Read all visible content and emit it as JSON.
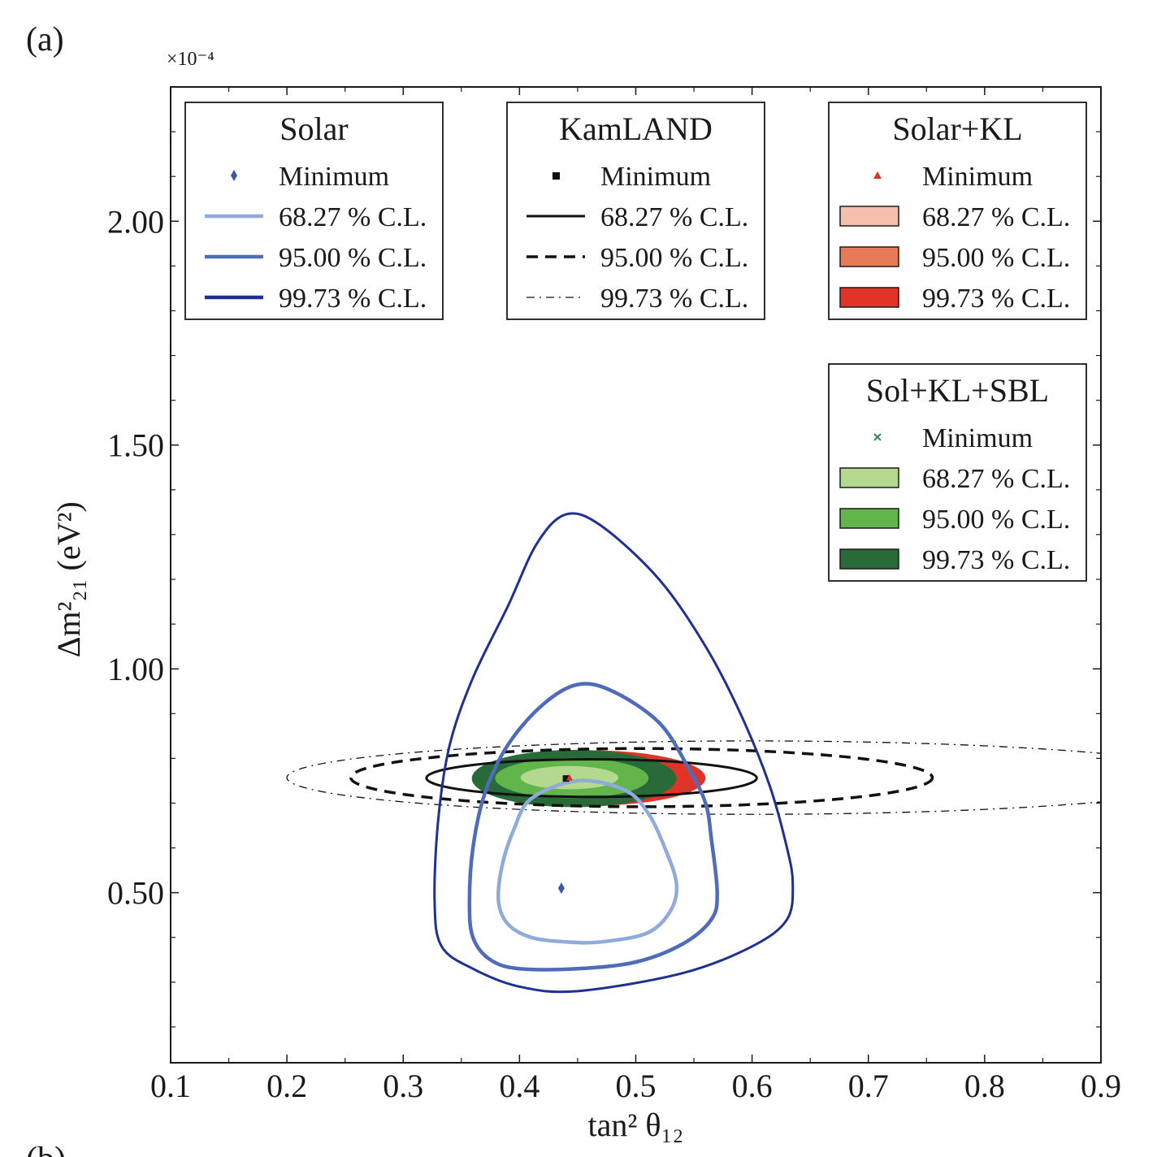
{
  "panel_label": "(a)",
  "next_panel_label": "(b)",
  "chart_data": {
    "type": "contour",
    "xlabel": "tan² θ₁₂",
    "ylabel": "Δm²₂₁ (eV²)",
    "y_multiplier": "×10⁻⁴",
    "xlim": [
      0.1,
      0.9
    ],
    "ylim": [
      0.12,
      2.3
    ],
    "x_ticks": [
      0.1,
      0.2,
      0.3,
      0.4,
      0.5,
      0.6,
      0.7,
      0.8,
      0.9
    ],
    "x_tick_labels": [
      "0.1",
      "0.2",
      "0.3",
      "0.4",
      "0.5",
      "0.6",
      "0.7",
      "0.8",
      "0.9"
    ],
    "y_ticks": [
      0.5,
      1.0,
      1.5,
      2.0
    ],
    "y_tick_labels": [
      "0.50",
      "1.00",
      "1.50",
      "2.00"
    ],
    "colors": {
      "solar_1": "#8fabdc",
      "solar_2": "#4f6cbb",
      "solar_3": "#1e3092",
      "kl": "#111111",
      "skl_1": "#f4c0ae",
      "skl_2": "#e77b57",
      "skl_3": "#e03428",
      "sbl_1": "#b3d98e",
      "sbl_2": "#62b54a",
      "sbl_3": "#286a38"
    },
    "legends": [
      {
        "title": "Solar",
        "entries": [
          {
            "label": "Minimum",
            "marker": "diamond",
            "color": "#3a5aa8"
          },
          {
            "label": "68.27 % C.L.",
            "line": "solid",
            "color": "#8fabdc"
          },
          {
            "label": "95.00 % C.L.",
            "line": "solid",
            "color": "#4f6cbb"
          },
          {
            "label": "99.73 % C.L.",
            "line": "solid",
            "color": "#1e3092"
          }
        ]
      },
      {
        "title": "KamLAND",
        "entries": [
          {
            "label": "Minimum",
            "marker": "square",
            "color": "#111111"
          },
          {
            "label": "68.27 % C.L.",
            "line": "solid",
            "color": "#111111"
          },
          {
            "label": "95.00 % C.L.",
            "line": "dashed",
            "color": "#111111"
          },
          {
            "label": "99.73 % C.L.",
            "line": "dashdot",
            "color": "#111111"
          }
        ]
      },
      {
        "title": "Solar+KL",
        "entries": [
          {
            "label": "Minimum",
            "marker": "triangle",
            "color": "#e03428"
          },
          {
            "label": "68.27 % C.L.",
            "patch": "#f4c0ae"
          },
          {
            "label": "95.00 % C.L.",
            "patch": "#e77b57"
          },
          {
            "label": "99.73 % C.L.",
            "patch": "#e03428"
          }
        ]
      },
      {
        "title": "Sol+KL+SBL",
        "entries": [
          {
            "label": "Minimum",
            "marker": "x",
            "color": "#2e8b57"
          },
          {
            "label": "68.27 % C.L.",
            "patch": "#b3d98e"
          },
          {
            "label": "95.00 % C.L.",
            "patch": "#62b54a"
          },
          {
            "label": "99.73 % C.L.",
            "patch": "#286a38"
          }
        ]
      }
    ],
    "series": [
      {
        "name": "Solar",
        "minimum": [
          0.436,
          0.51
        ],
        "contours": [
          {
            "cl": "68.27 % C.L.",
            "points": [
              [
                0.45,
                0.75
              ],
              [
                0.49,
                0.73
              ],
              [
                0.51,
                0.68
              ],
              [
                0.525,
                0.6
              ],
              [
                0.535,
                0.52
              ],
              [
                0.53,
                0.46
              ],
              [
                0.51,
                0.41
              ],
              [
                0.47,
                0.39
              ],
              [
                0.44,
                0.39
              ],
              [
                0.41,
                0.4
              ],
              [
                0.39,
                0.43
              ],
              [
                0.382,
                0.48
              ],
              [
                0.385,
                0.56
              ],
              [
                0.395,
                0.64
              ],
              [
                0.41,
                0.71
              ]
            ]
          },
          {
            "cl": "95.00 % C.L.",
            "points": [
              [
                0.45,
                0.965
              ],
              [
                0.48,
                0.95
              ],
              [
                0.52,
                0.88
              ],
              [
                0.545,
                0.78
              ],
              [
                0.56,
                0.7
              ],
              [
                0.565,
                0.62
              ],
              [
                0.57,
                0.5
              ],
              [
                0.565,
                0.44
              ],
              [
                0.54,
                0.385
              ],
              [
                0.5,
                0.345
              ],
              [
                0.45,
                0.33
              ],
              [
                0.4,
                0.33
              ],
              [
                0.375,
                0.35
              ],
              [
                0.36,
                0.4
              ],
              [
                0.357,
                0.48
              ],
              [
                0.36,
                0.6
              ],
              [
                0.37,
                0.72
              ],
              [
                0.39,
                0.83
              ],
              [
                0.42,
                0.92
              ]
            ]
          },
          {
            "cl": "99.73 % C.L.",
            "points": [
              [
                0.44,
                1.345
              ],
              [
                0.47,
                1.32
              ],
              [
                0.52,
                1.2
              ],
              [
                0.56,
                1.05
              ],
              [
                0.59,
                0.9
              ],
              [
                0.615,
                0.74
              ],
              [
                0.63,
                0.6
              ],
              [
                0.635,
                0.52
              ],
              [
                0.63,
                0.44
              ],
              [
                0.6,
                0.38
              ],
              [
                0.54,
                0.32
              ],
              [
                0.45,
                0.28
              ],
              [
                0.4,
                0.29
              ],
              [
                0.36,
                0.33
              ],
              [
                0.333,
                0.38
              ],
              [
                0.327,
                0.48
              ],
              [
                0.33,
                0.66
              ],
              [
                0.34,
                0.83
              ],
              [
                0.36,
                0.98
              ],
              [
                0.39,
                1.14
              ],
              [
                0.415,
                1.28
              ]
            ]
          }
        ]
      },
      {
        "name": "KamLAND",
        "minimum": [
          0.44,
          0.755
        ],
        "contours": [
          {
            "cl": "68.27 % C.L.",
            "ellipse": {
              "cx": 0.462,
              "cy": 0.756,
              "rx": 0.142,
              "ry": 0.042
            }
          },
          {
            "cl": "95.00 % C.L.",
            "ellipse": {
              "cx": 0.505,
              "cy": 0.757,
              "rx": 0.25,
              "ry": 0.065
            }
          },
          {
            "cl": "99.73 % C.L.",
            "ellipse": {
              "cx": 0.6,
              "cy": 0.757,
              "rx": 0.4,
              "ry": 0.082
            }
          }
        ]
      },
      {
        "name": "Solar+KL",
        "minimum": [
          0.443,
          0.756
        ],
        "contours": [
          {
            "cl": "99.73 % C.L.",
            "ellipse": {
              "cx": 0.46,
              "cy": 0.756,
              "rx": 0.1,
              "ry": 0.062
            }
          },
          {
            "cl": "95.00 % C.L.",
            "ellipse": {
              "cx": 0.455,
              "cy": 0.756,
              "rx": 0.08,
              "ry": 0.05
            }
          },
          {
            "cl": "68.27 % C.L.",
            "ellipse": {
              "cx": 0.45,
              "cy": 0.756,
              "rx": 0.05,
              "ry": 0.032
            }
          }
        ]
      },
      {
        "name": "Sol+KL+SBL",
        "minimum": [
          0.44,
          0.756
        ],
        "contours": [
          {
            "cl": "99.73 % C.L.",
            "ellipse": {
              "cx": 0.447,
              "cy": 0.755,
              "rx": 0.088,
              "ry": 0.064
            }
          },
          {
            "cl": "95.00 % C.L.",
            "ellipse": {
              "cx": 0.445,
              "cy": 0.756,
              "rx": 0.066,
              "ry": 0.045
            }
          },
          {
            "cl": "68.27 % C.L.",
            "ellipse": {
              "cx": 0.443,
              "cy": 0.757,
              "rx": 0.042,
              "ry": 0.026
            }
          }
        ]
      }
    ]
  }
}
